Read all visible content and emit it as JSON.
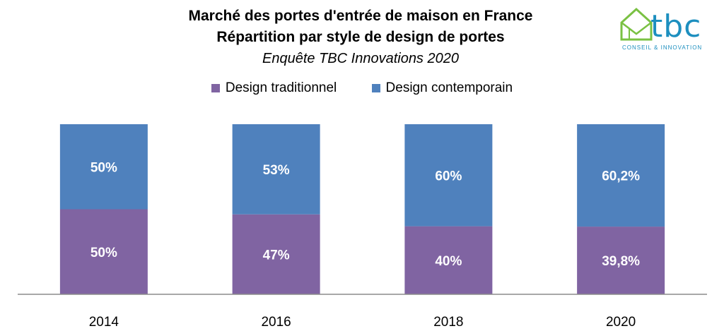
{
  "header": {
    "title_line1": "Marché des portes d'entrée de maison en France",
    "title_line2": "Répartition par style de design de portes",
    "subtitle": "Enquête TBC Innovations  2020"
  },
  "logo": {
    "name": "tbc",
    "tagline": "CONSEIL & INNOVATION",
    "icon": "house-icon",
    "color": "#1d8fbf",
    "accent": "#7ac143"
  },
  "legend": [
    {
      "label": "Design traditionnel",
      "color": "#8064a2"
    },
    {
      "label": "Design contemporain",
      "color": "#4f81bd"
    }
  ],
  "chart_data": {
    "type": "bar",
    "stacked": true,
    "categories": [
      "2014",
      "2016",
      "2018",
      "2020"
    ],
    "series": [
      {
        "name": "Design traditionnel",
        "values": [
          50,
          47,
          40,
          39.8
        ],
        "labels": [
          "50%",
          "47%",
          "40%",
          "39,8%"
        ],
        "color": "#8064a2"
      },
      {
        "name": "Design contemporain",
        "values": [
          50,
          53,
          60,
          60.2
        ],
        "labels": [
          "50%",
          "53%",
          "60%",
          "60,2%"
        ],
        "color": "#4f81bd"
      }
    ],
    "title": "Marché des portes d'entrée de maison en France",
    "subtitle": "Répartition par style de design de portes",
    "ylim": [
      0,
      100
    ],
    "grid": false,
    "legend_position": "top"
  }
}
